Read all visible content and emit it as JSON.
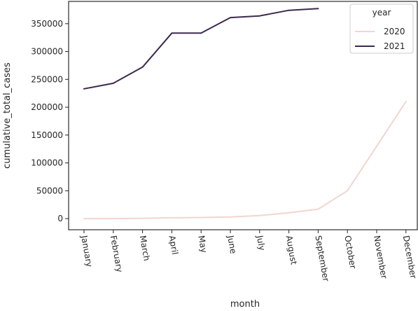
{
  "chart_data": {
    "type": "line",
    "xlabel": "month",
    "ylabel": "cumulative_total_cases",
    "categories": [
      "January",
      "February",
      "March",
      "April",
      "May",
      "June",
      "July",
      "August",
      "September",
      "October",
      "November",
      "December"
    ],
    "ylim": [
      -20000,
      390000
    ],
    "yticks": [
      0,
      50000,
      100000,
      150000,
      200000,
      250000,
      300000,
      350000
    ],
    "ytick_labels": [
      "0",
      "50000",
      "100000",
      "150000",
      "200000",
      "250000",
      "300000",
      "350000"
    ],
    "legend": {
      "title": "year",
      "position": "top-right"
    },
    "series": [
      {
        "name": "2020",
        "color": "#f2d5d0",
        "values": [
          0,
          0,
          500,
          1500,
          2000,
          3000,
          5500,
          10500,
          17000,
          50000,
          130000,
          210000
        ]
      },
      {
        "name": "2021",
        "color": "#3c2a4d",
        "values": [
          233000,
          243000,
          272000,
          333000,
          333000,
          361000,
          364000,
          374000,
          377000,
          null,
          null,
          null
        ]
      }
    ]
  }
}
